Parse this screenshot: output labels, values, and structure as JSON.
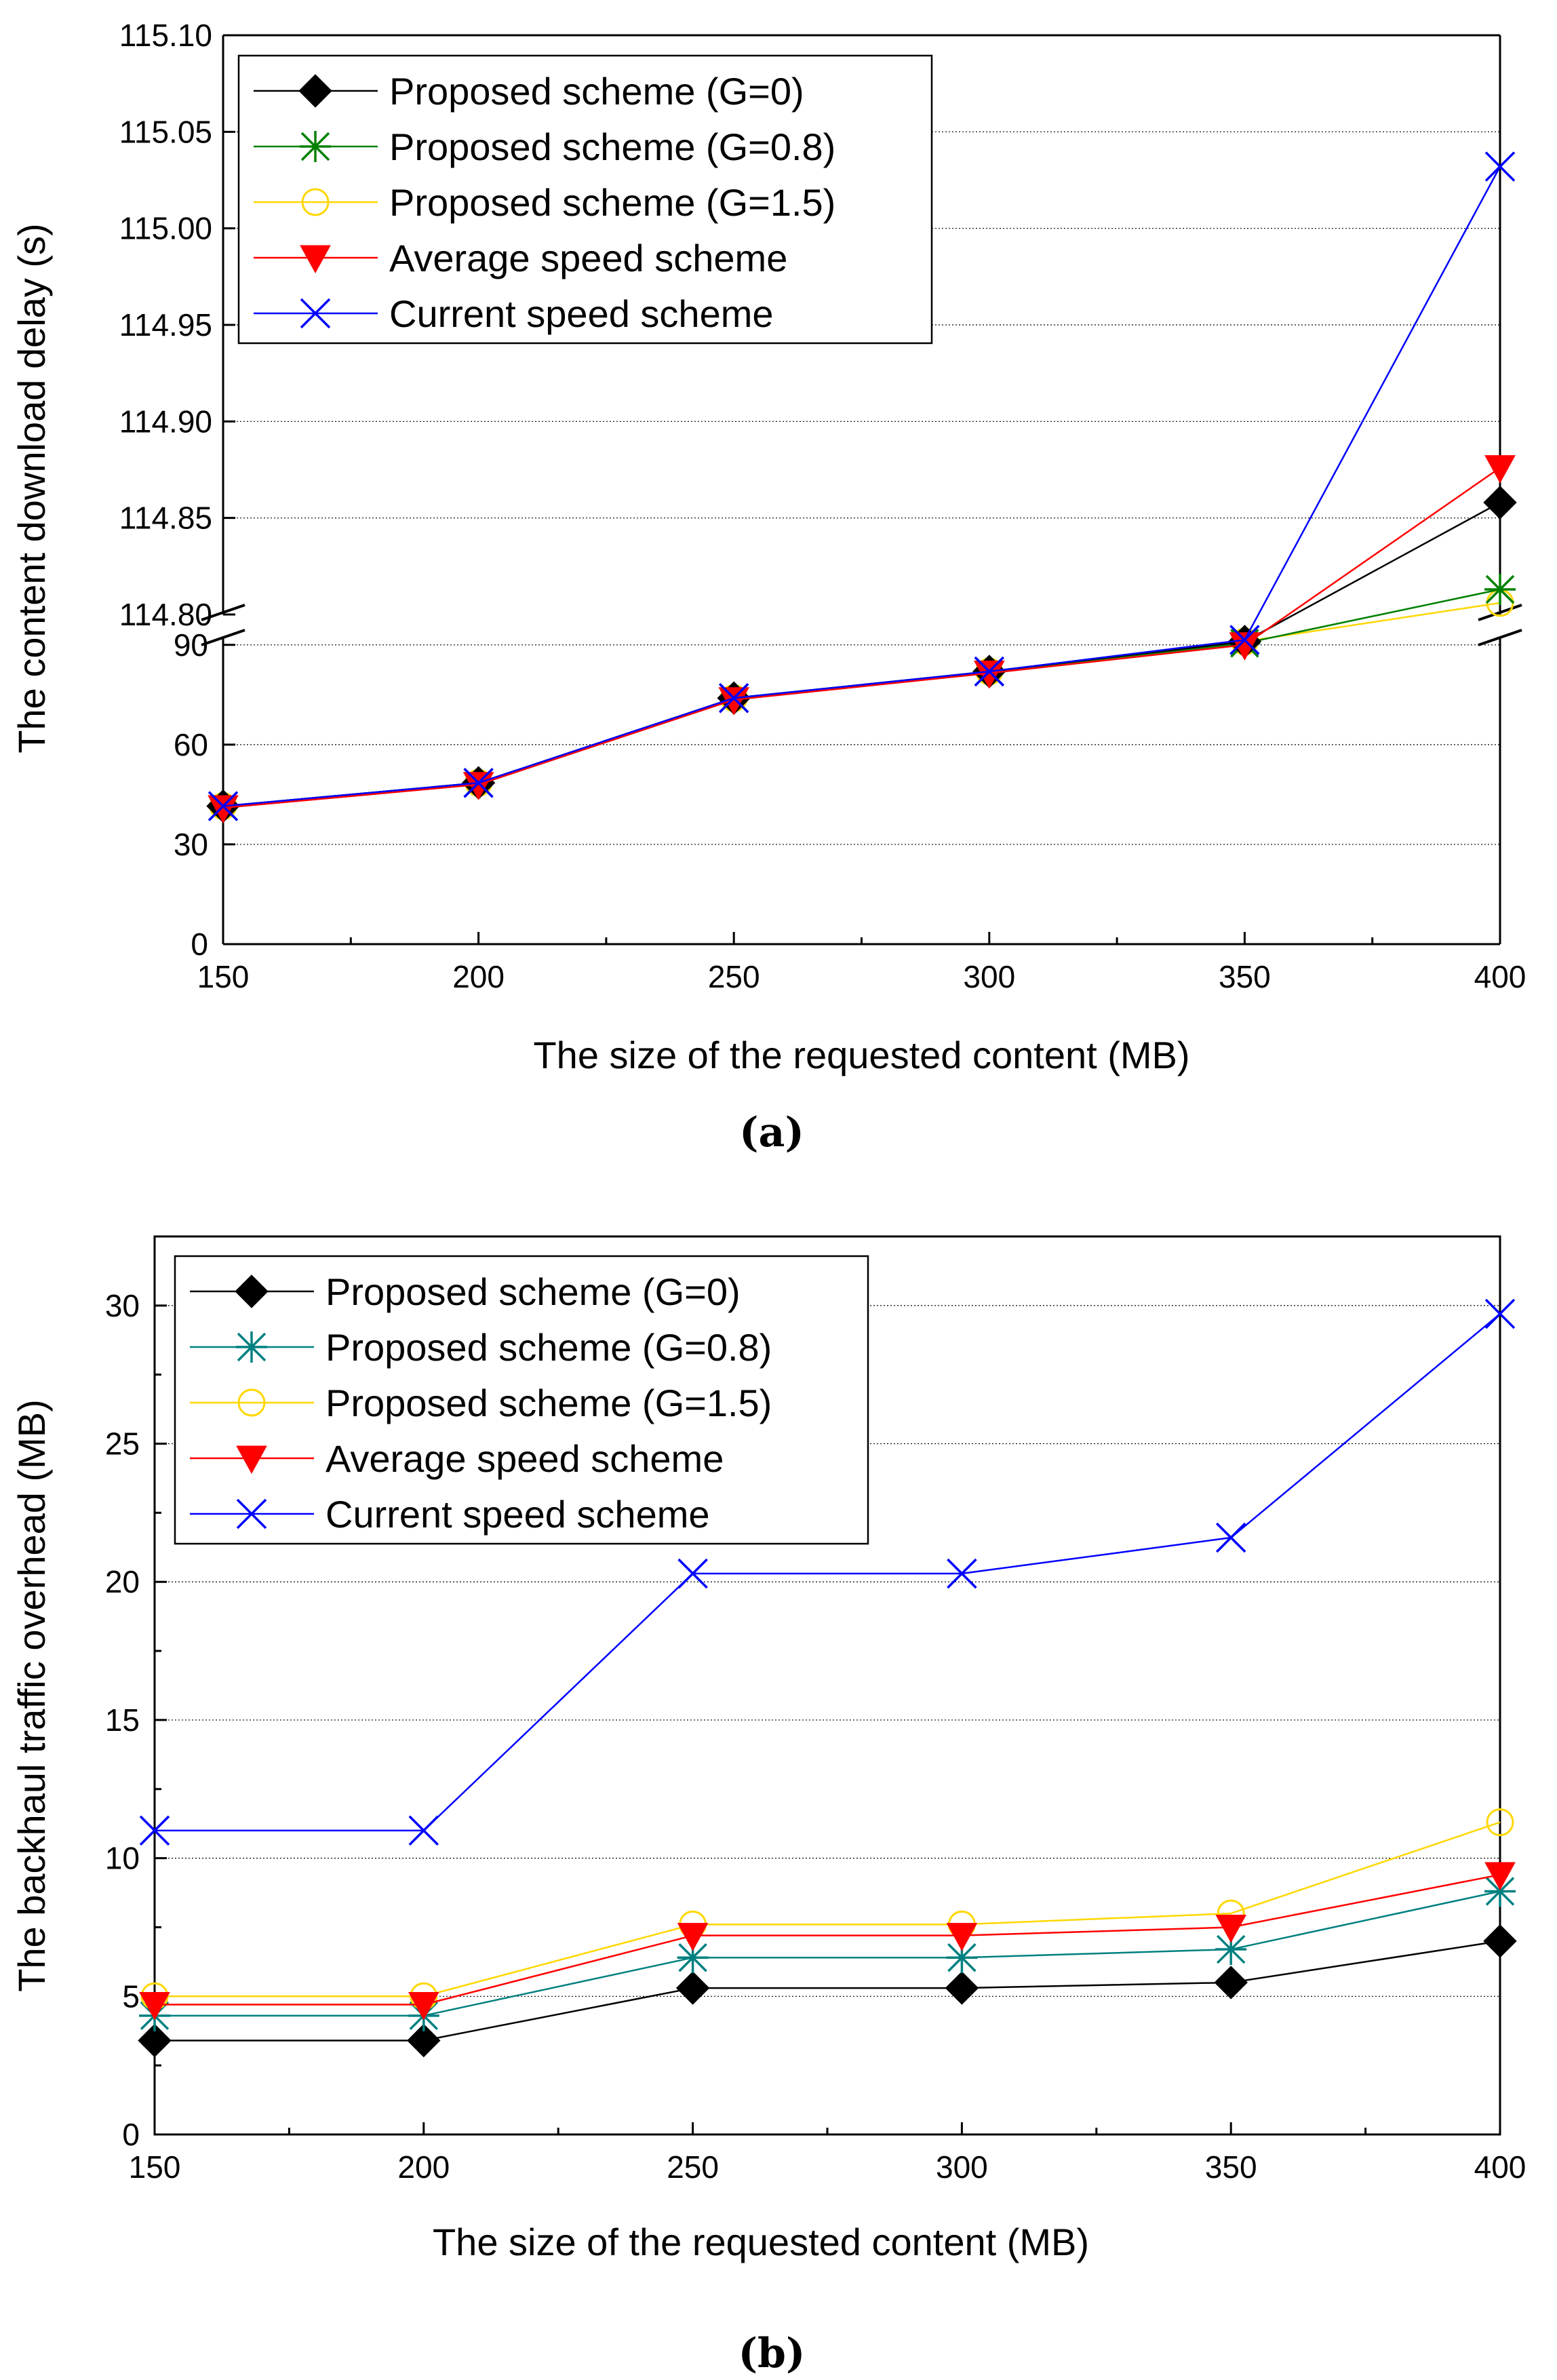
{
  "figure": {
    "caption_a": "(a)",
    "caption_b": "(b)"
  },
  "colors": {
    "proposed_g0": "#000000",
    "proposed_g08_a": "#008000",
    "proposed_g08_b": "#008080",
    "proposed_g15": "#ffd700",
    "average": "#ff0000",
    "current": "#0000ff"
  },
  "chart_data": [
    {
      "type": "line",
      "panel": "(a)",
      "title": "",
      "xlabel": "The size of the requested content (MB)",
      "ylabel": "The content download delay (s)",
      "x": [
        150,
        200,
        250,
        300,
        350,
        400
      ],
      "xlim": [
        150,
        400
      ],
      "x_ticks": [
        "150",
        "200",
        "250",
        "300",
        "350",
        "400"
      ],
      "y_axis_break": {
        "lower_range": [
          0,
          92
        ],
        "lower_ticks": [
          "0",
          "30",
          "60",
          "90"
        ],
        "upper_range": [
          114.8,
          115.1
        ],
        "upper_ticks": [
          "114.80",
          "114.85",
          "114.90",
          "114.95",
          "115.00",
          "115.05",
          "115.10"
        ]
      },
      "grid": "horizontal",
      "legend_position": "top-left",
      "series": [
        {
          "name": "Proposed scheme (G=0)",
          "marker": "diamond",
          "values": [
            41.5,
            48.5,
            74,
            82,
            91,
            114.858
          ]
        },
        {
          "name": "Proposed scheme (G=0.8)",
          "marker": "asterisk",
          "values": [
            41.5,
            48.5,
            74,
            82,
            90.5,
            114.813
          ]
        },
        {
          "name": "Proposed scheme (G=1.5)",
          "marker": "circle",
          "values": [
            41.5,
            48.5,
            74,
            82,
            91,
            114.806
          ]
        },
        {
          "name": "Average speed scheme",
          "marker": "triangle-down",
          "values": [
            41,
            48,
            73.5,
            81.5,
            90,
            114.876
          ]
        },
        {
          "name": "Current speed scheme",
          "marker": "x",
          "values": [
            41.5,
            48.5,
            74,
            82,
            91.5,
            115.032
          ]
        }
      ]
    },
    {
      "type": "line",
      "panel": "(b)",
      "title": "",
      "xlabel": "The size of the requested content (MB)",
      "ylabel": "The backhaul traffic overhead (MB)",
      "x": [
        150,
        200,
        250,
        300,
        350,
        400
      ],
      "xlim": [
        150,
        400
      ],
      "ylim": [
        0,
        32.5
      ],
      "x_ticks": [
        "150",
        "200",
        "250",
        "300",
        "350",
        "400"
      ],
      "y_ticks": [
        "0",
        "5",
        "10",
        "15",
        "20",
        "25",
        "30"
      ],
      "grid": "horizontal",
      "legend_position": "top-left",
      "series": [
        {
          "name": "Proposed scheme (G=0)",
          "marker": "diamond",
          "values": [
            3.4,
            3.4,
            5.3,
            5.3,
            5.5,
            7.0
          ]
        },
        {
          "name": "Proposed scheme (G=0.8)",
          "marker": "asterisk",
          "values": [
            4.3,
            4.3,
            6.4,
            6.4,
            6.7,
            8.8
          ]
        },
        {
          "name": "Proposed scheme (G=1.5)",
          "marker": "circle",
          "values": [
            5.0,
            5.0,
            7.6,
            7.6,
            8.0,
            11.3
          ]
        },
        {
          "name": "Average speed scheme",
          "marker": "triangle-down",
          "values": [
            4.7,
            4.7,
            7.2,
            7.2,
            7.5,
            9.4
          ]
        },
        {
          "name": "Current speed scheme",
          "marker": "x",
          "values": [
            11.0,
            11.0,
            20.3,
            20.3,
            21.6,
            29.7
          ]
        }
      ]
    }
  ]
}
